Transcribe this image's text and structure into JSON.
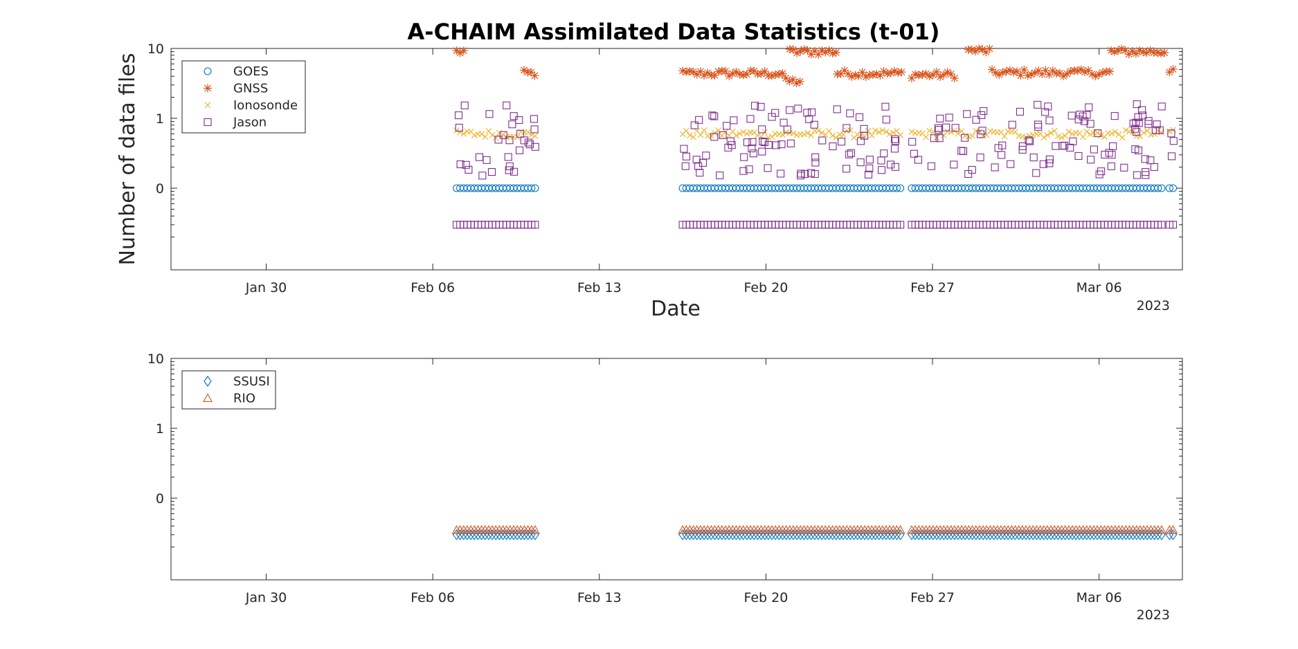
{
  "chart_data": [
    {
      "type": "scatter",
      "title": "A-CHAIM Assimilated Data Statistics (t-01)",
      "xlabel": "Date",
      "ylabel": "Number of data files",
      "x_unit": "date",
      "xlim": [
        "2023-01-26",
        "2023-03-09 12:00"
      ],
      "x_ticks": [
        "Jan 30",
        "Feb 06",
        "Feb 13",
        "Feb 20",
        "Feb 27",
        "Mar 06"
      ],
      "x_secondary_label": "2023",
      "y_scale": "log",
      "y_ticks": [
        "10",
        "1",
        "0"
      ],
      "legend_position": "top-left",
      "series": [
        {
          "name": "GOES",
          "marker": "circle",
          "color": "#0072BD",
          "segments": [
            {
              "start": "2023-02-07",
              "end": "2023-02-10 08:00",
              "value": 0.1
            },
            {
              "start": "2023-02-16 12:00",
              "end": "2023-02-25 19:00",
              "value": 0.1
            },
            {
              "start": "2023-02-26 03:00",
              "end": "2023-03-08 18:00",
              "value": 0.1
            },
            {
              "start": "2023-03-08 23:00",
              "end": "2023-03-09 06:00",
              "value": 0.1
            }
          ]
        },
        {
          "name": "GNSS",
          "marker": "asterisk",
          "color": "#D95319",
          "segments": [
            {
              "start": "2023-02-07",
              "end": "2023-02-07 10:00",
              "value": 9
            },
            {
              "start": "2023-02-09 20:00",
              "end": "2023-02-10 08:00",
              "value": 4.4
            },
            {
              "start": "2023-02-16 12:00",
              "end": "2023-02-20 20:00",
              "value": 4.4
            },
            {
              "start": "2023-02-20 20:00",
              "end": "2023-02-21 12:00",
              "value": 3.4
            },
            {
              "start": "2023-02-21",
              "end": "2023-02-23",
              "value": 9
            },
            {
              "start": "2023-02-23",
              "end": "2023-02-25 19:00",
              "value": 4.4
            },
            {
              "start": "2023-02-26 03:00",
              "end": "2023-02-28",
              "value": 4.2
            },
            {
              "start": "2023-02-28 12:00",
              "end": "2023-03-01 12:00",
              "value": 9.3
            },
            {
              "start": "2023-03-01 12:00",
              "end": "2023-03-06 12:00",
              "value": 4.5
            },
            {
              "start": "2023-03-06 12:00",
              "end": "2023-03-08 18:00",
              "value": 9
            },
            {
              "start": "2023-03-08 23:00",
              "end": "2023-03-09 06:00",
              "value": 5
            }
          ]
        },
        {
          "name": "Ionosonde",
          "marker": "x",
          "color": "#EDB120",
          "segments": [
            {
              "start": "2023-02-07",
              "end": "2023-02-10 08:00",
              "value": 0.6
            },
            {
              "start": "2023-02-16 12:00",
              "end": "2023-02-25 19:00",
              "value": 0.6
            },
            {
              "start": "2023-02-26 03:00",
              "end": "2023-03-08 18:00",
              "value": 0.6
            },
            {
              "start": "2023-03-08 23:00",
              "end": "2023-03-09 06:00",
              "value": 0.65
            }
          ]
        },
        {
          "name": "Jason",
          "marker": "square",
          "color": "#7E2F8E",
          "segments": [
            {
              "start": "2023-02-07",
              "end": "2023-02-10 08:00",
              "value": 0.03
            },
            {
              "start": "2023-02-16 12:00",
              "end": "2023-02-25 19:00",
              "value": 0.03
            },
            {
              "start": "2023-02-26 03:00",
              "end": "2023-03-08 18:00",
              "value": 0.03
            },
            {
              "start": "2023-03-08 23:00",
              "end": "2023-03-09 06:00",
              "value": 0.03
            }
          ],
          "scatter_range": [
            0.15,
            1.6
          ]
        }
      ]
    },
    {
      "type": "scatter",
      "xlabel": "",
      "ylabel": "",
      "x_unit": "date",
      "xlim": [
        "2023-01-26",
        "2023-03-09 12:00"
      ],
      "x_ticks": [
        "Jan 30",
        "Feb 06",
        "Feb 13",
        "Feb 20",
        "Feb 27",
        "Mar 06"
      ],
      "x_secondary_label": "2023",
      "y_scale": "log",
      "y_ticks": [
        "10",
        "1",
        "0"
      ],
      "legend_position": "top-left",
      "series": [
        {
          "name": "SSUSI",
          "marker": "diamond",
          "color": "#0072BD",
          "segments": [
            {
              "start": "2023-02-07",
              "end": "2023-02-10 08:00",
              "value": 0.03
            },
            {
              "start": "2023-02-16 12:00",
              "end": "2023-02-25 19:00",
              "value": 0.03
            },
            {
              "start": "2023-02-26 03:00",
              "end": "2023-03-08 18:00",
              "value": 0.03
            },
            {
              "start": "2023-03-08 23:00",
              "end": "2023-03-09 06:00",
              "value": 0.03
            }
          ]
        },
        {
          "name": "RIO",
          "marker": "triangle",
          "color": "#D95319",
          "segments": [
            {
              "start": "2023-02-07",
              "end": "2023-02-10 08:00",
              "value": 0.035
            },
            {
              "start": "2023-02-16 12:00",
              "end": "2023-02-25 19:00",
              "value": 0.035
            },
            {
              "start": "2023-02-26 03:00",
              "end": "2023-03-08 18:00",
              "value": 0.035
            },
            {
              "start": "2023-03-08 23:00",
              "end": "2023-03-09 06:00",
              "value": 0.035
            }
          ]
        }
      ]
    }
  ]
}
